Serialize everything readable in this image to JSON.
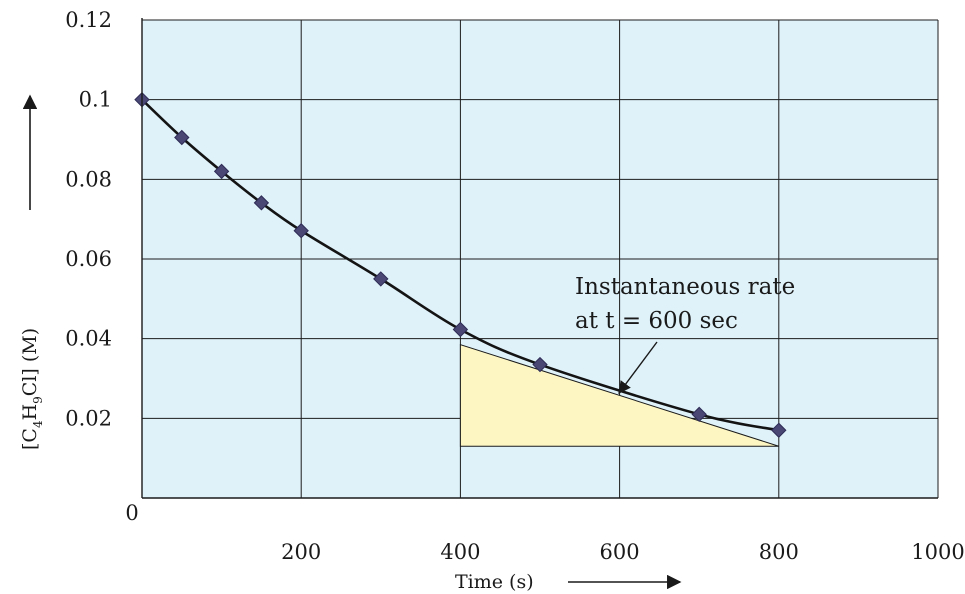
{
  "chart_data": {
    "type": "scatter",
    "title": "",
    "xlabel": "Time (s)",
    "ylabel": "[C4H9Cl] (M)",
    "ylabel_parts": {
      "p1": "[C",
      "s1": "4",
      "p2": "H",
      "s2": "9",
      "p3": "Cl] (M)"
    },
    "xlim": [
      0,
      1000
    ],
    "ylim": [
      0,
      0.12
    ],
    "x_ticks": [
      0,
      200,
      400,
      600,
      800,
      1000
    ],
    "x_tick_labels": [
      "0",
      "200",
      "400",
      "600",
      "800",
      "1000"
    ],
    "y_ticks": [
      0.02,
      0.04,
      0.06,
      0.08,
      0.1,
      0.12
    ],
    "y_tick_labels": [
      "0.02",
      "0.04",
      "0.06",
      "0.08",
      "0.1",
      "0.12"
    ],
    "grid": true,
    "grid_x": [
      200,
      400,
      600,
      800,
      1000
    ],
    "grid_y": [
      0.02,
      0.04,
      0.06,
      0.08,
      0.1,
      0.12
    ],
    "series": [
      {
        "x": [
          0,
          50,
          100,
          150,
          200,
          300,
          400,
          500,
          700,
          800
        ],
        "y": [
          0.1,
          0.0905,
          0.082,
          0.0741,
          0.0671,
          0.055,
          0.0423,
          0.0335,
          0.021,
          0.017
        ],
        "marker": "diamond",
        "trend_curve": true
      }
    ],
    "tangent_triangle": {
      "x_start": 400,
      "x_end": 800,
      "y_top": 0.0385,
      "y_bottom": 0.013
    },
    "annotation": {
      "lines": [
        "Instantaneous rate",
        "at t = 600 sec"
      ],
      "points_to": {
        "x": 600,
        "y": 0.0265
      }
    },
    "colors": {
      "plot_background": "#dff2fa",
      "grid": "#1c1c1c",
      "marker": "#4a4775",
      "curve": "#141414",
      "triangle_fill": "#fdf6c3"
    }
  }
}
